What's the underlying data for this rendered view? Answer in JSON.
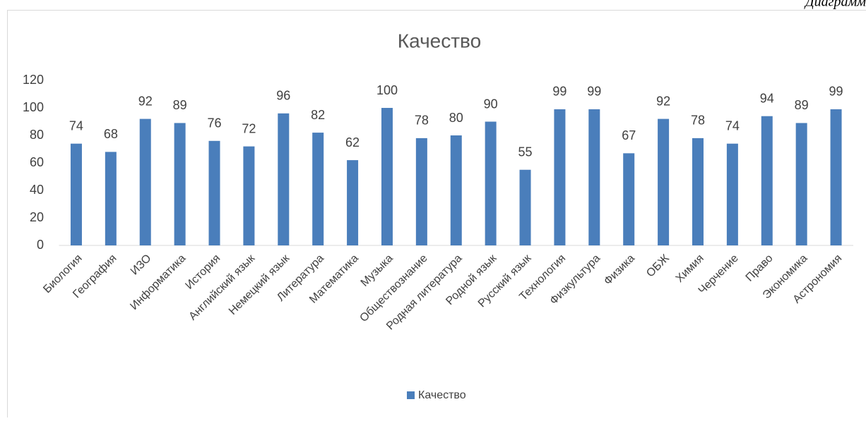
{
  "caption": "Диаграмм",
  "chart_data": {
    "type": "bar",
    "title": "Качество",
    "categories": [
      "Биология",
      "География",
      "ИЗО",
      "Информатика",
      "История",
      "Английский язык",
      "Немецкий язык",
      "Литература",
      "Математика",
      "Музыка",
      "Обществознание",
      "Родная литература",
      "Родной язык",
      "Русский язык",
      "Технология",
      "Физкультура",
      "Физика",
      "ОБЖ",
      "Химия",
      "Черчение",
      "Право",
      "Экономика",
      "Астрономия"
    ],
    "series": [
      {
        "name": "Качество",
        "color": "#4a7ebb",
        "values": [
          74,
          68,
          92,
          89,
          76,
          72,
          96,
          82,
          62,
          100,
          78,
          80,
          90,
          55,
          99,
          99,
          67,
          92,
          78,
          74,
          94,
          89,
          99
        ]
      }
    ],
    "ylim": [
      0,
      120
    ],
    "yticks": [
      0,
      20,
      40,
      60,
      80,
      100,
      120
    ],
    "grid": false,
    "legend": "bottom"
  }
}
